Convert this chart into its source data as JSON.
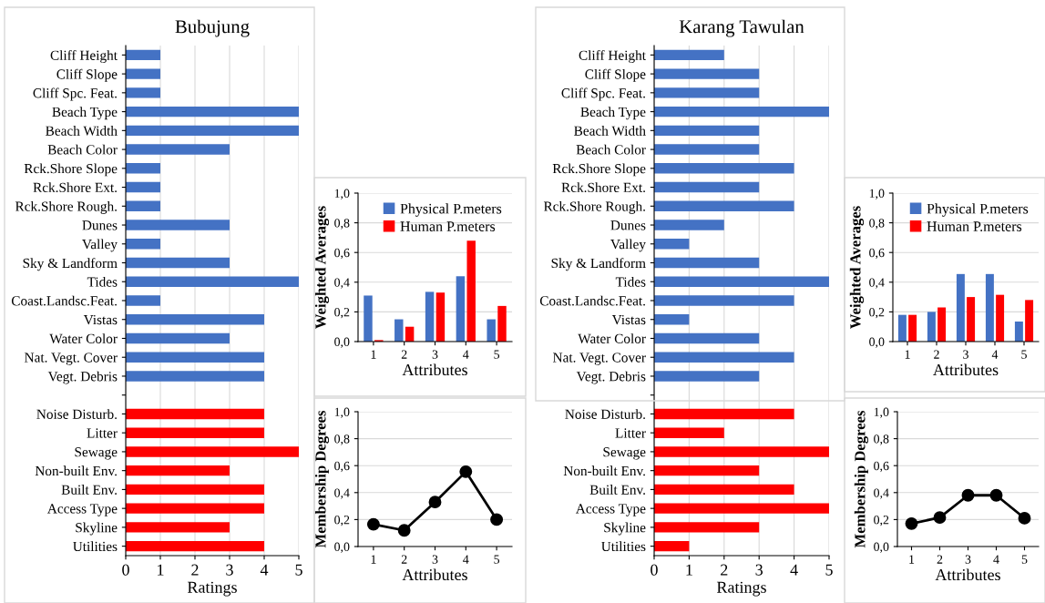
{
  "chart_data": [
    {
      "type": "bar",
      "orientation": "horizontal",
      "title": "Bubujung",
      "xlabel": "Ratings",
      "categories": [
        "Cliff Height",
        "Cliff Slope",
        "Cliff Spc. Feat.",
        "Beach Type",
        "Beach Width",
        "Beach Color",
        "Rck.Shore Slope",
        "Rck.Shore Ext.",
        "Rck.Shore Rough.",
        "Dunes",
        "Valley",
        "Sky & Landform",
        "Tides",
        "Coast.Landsc.Feat.",
        "Vistas",
        "Water Color",
        "Nat. Vegt. Cover",
        "Vegt. Debris",
        null,
        "Noise Disturb.",
        "Litter",
        "Sewage",
        "Non-built Env.",
        "Built Env.",
        "Access Type",
        "Skyline",
        "Utilities"
      ],
      "values": [
        1,
        1,
        1,
        5,
        5,
        3,
        1,
        1,
        1,
        3,
        1,
        3,
        5,
        1,
        4,
        3,
        4,
        4,
        null,
        4,
        4,
        5,
        3,
        4,
        4,
        3,
        4
      ],
      "colors": [
        "#4472c4",
        "#4472c4",
        "#4472c4",
        "#4472c4",
        "#4472c4",
        "#4472c4",
        "#4472c4",
        "#4472c4",
        "#4472c4",
        "#4472c4",
        "#4472c4",
        "#4472c4",
        "#4472c4",
        "#4472c4",
        "#4472c4",
        "#4472c4",
        "#4472c4",
        "#4472c4",
        null,
        "#ff0000",
        "#ff0000",
        "#ff0000",
        "#ff0000",
        "#ff0000",
        "#ff0000",
        "#ff0000",
        "#ff0000"
      ],
      "xlim": [
        0,
        5
      ],
      "xticks": [
        0,
        1,
        2,
        3,
        4,
        5
      ],
      "grid": "x"
    },
    {
      "type": "bar",
      "xlabel": "Attributes",
      "ylabel": "Weighted Averages",
      "categories": [
        "1",
        "2",
        "3",
        "4",
        "5"
      ],
      "series": [
        {
          "name": "Physical P.meters",
          "color": "#4472c4",
          "values": [
            0.31,
            0.15,
            0.335,
            0.44,
            0.15
          ]
        },
        {
          "name": "Human P.meters",
          "color": "#ff0000",
          "values": [
            0.01,
            0.1,
            0.33,
            0.68,
            0.24
          ]
        }
      ],
      "ylim": [
        0,
        1
      ],
      "yticks": [
        {
          "value": 0,
          "label": "0,0"
        },
        {
          "value": 0.2,
          "label": "0,2"
        },
        {
          "value": 0.4,
          "label": "0,4"
        },
        {
          "value": 0.6,
          "label": "0,6"
        },
        {
          "value": 0.8,
          "label": "0,8"
        },
        {
          "value": 1,
          "label": "1,0"
        }
      ],
      "grid": "y",
      "legend": "top right"
    },
    {
      "type": "line",
      "xlabel": "Attributes",
      "ylabel": "Membership Degrees",
      "categories": [
        "1",
        "2",
        "3",
        "4",
        "5"
      ],
      "series": [
        {
          "color": "#000000",
          "values": [
            0.165,
            0.12,
            0.33,
            0.555,
            0.2
          ]
        }
      ],
      "ylim": [
        0,
        1
      ],
      "yticks": [
        {
          "value": 0,
          "label": "0,0"
        },
        {
          "value": 0.2,
          "label": "0,2"
        },
        {
          "value": 0.4,
          "label": "0,4"
        },
        {
          "value": 0.6,
          "label": "0,6"
        },
        {
          "value": 0.8,
          "label": "0,8"
        },
        {
          "value": 1,
          "label": "1,0"
        }
      ],
      "grid": "y",
      "marker": "circle"
    },
    {
      "type": "bar",
      "orientation": "horizontal",
      "title": "Karang Tawulan",
      "xlabel": "Ratings",
      "categories": [
        "Cliff Height",
        "Cliff Slope",
        "Cliff Spc. Feat.",
        "Beach Type",
        "Beach Width",
        "Beach Color",
        "Rck.Shore Slope",
        "Rck.Shore Ext.",
        "Rck.Shore Rough.",
        "Dunes",
        "Valley",
        "Sky & Landform",
        "Tides",
        "Coast.Landsc.Feat.",
        "Vistas",
        "Water Color",
        "Nat. Vegt. Cover",
        "Vegt. Debris",
        null,
        "Noise Disturb.",
        "Litter",
        "Sewage",
        "Non-built Env.",
        "Built Env.",
        "Access Type",
        "Skyline",
        "Utilities"
      ],
      "values": [
        2,
        3,
        3,
        5,
        3,
        3,
        4,
        3,
        4,
        2,
        1,
        3,
        5,
        4,
        1,
        3,
        4,
        3,
        null,
        4,
        2,
        5,
        3,
        4,
        5,
        3,
        1
      ],
      "colors": [
        "#4472c4",
        "#4472c4",
        "#4472c4",
        "#4472c4",
        "#4472c4",
        "#4472c4",
        "#4472c4",
        "#4472c4",
        "#4472c4",
        "#4472c4",
        "#4472c4",
        "#4472c4",
        "#4472c4",
        "#4472c4",
        "#4472c4",
        "#4472c4",
        "#4472c4",
        "#4472c4",
        null,
        "#ff0000",
        "#ff0000",
        "#ff0000",
        "#ff0000",
        "#ff0000",
        "#ff0000",
        "#ff0000",
        "#ff0000"
      ],
      "xlim": [
        0,
        5
      ],
      "xticks": [
        0,
        1,
        2,
        3,
        4,
        5
      ],
      "grid": "x"
    },
    {
      "type": "bar",
      "xlabel": "Attributes",
      "ylabel": "Weighted Averages",
      "categories": [
        "1",
        "2",
        "3",
        "4",
        "5"
      ],
      "series": [
        {
          "name": "Physical P.meters",
          "color": "#4472c4",
          "values": [
            0.18,
            0.2,
            0.455,
            0.455,
            0.135
          ]
        },
        {
          "name": "Human P.meters",
          "color": "#ff0000",
          "values": [
            0.18,
            0.23,
            0.3,
            0.315,
            0.28
          ]
        }
      ],
      "ylim": [
        0,
        1
      ],
      "yticks": [
        {
          "value": 0,
          "label": "0,0"
        },
        {
          "value": 0.2,
          "label": "0,2"
        },
        {
          "value": 0.4,
          "label": "0,4"
        },
        {
          "value": 0.6,
          "label": "0,6"
        },
        {
          "value": 0.8,
          "label": "0,8"
        },
        {
          "value": 1,
          "label": "1,0"
        }
      ],
      "grid": "y",
      "legend": "top right"
    },
    {
      "type": "line",
      "xlabel": "Attributes",
      "ylabel": "Membership Degrees",
      "categories": [
        "1",
        "2",
        "3",
        "4",
        "5"
      ],
      "series": [
        {
          "color": "#000000",
          "values": [
            0.17,
            0.215,
            0.38,
            0.38,
            0.21
          ]
        }
      ],
      "ylim": [
        0,
        1
      ],
      "yticks": [
        {
          "value": 0,
          "label": "0,0"
        },
        {
          "value": 0.2,
          "label": "0,2"
        },
        {
          "value": 0.4,
          "label": "0,4"
        },
        {
          "value": 0.6,
          "label": "0,6"
        },
        {
          "value": 0.8,
          "label": "0,8"
        },
        {
          "value": 1,
          "label": "1,0"
        }
      ],
      "grid": "y",
      "marker": "circle"
    }
  ]
}
